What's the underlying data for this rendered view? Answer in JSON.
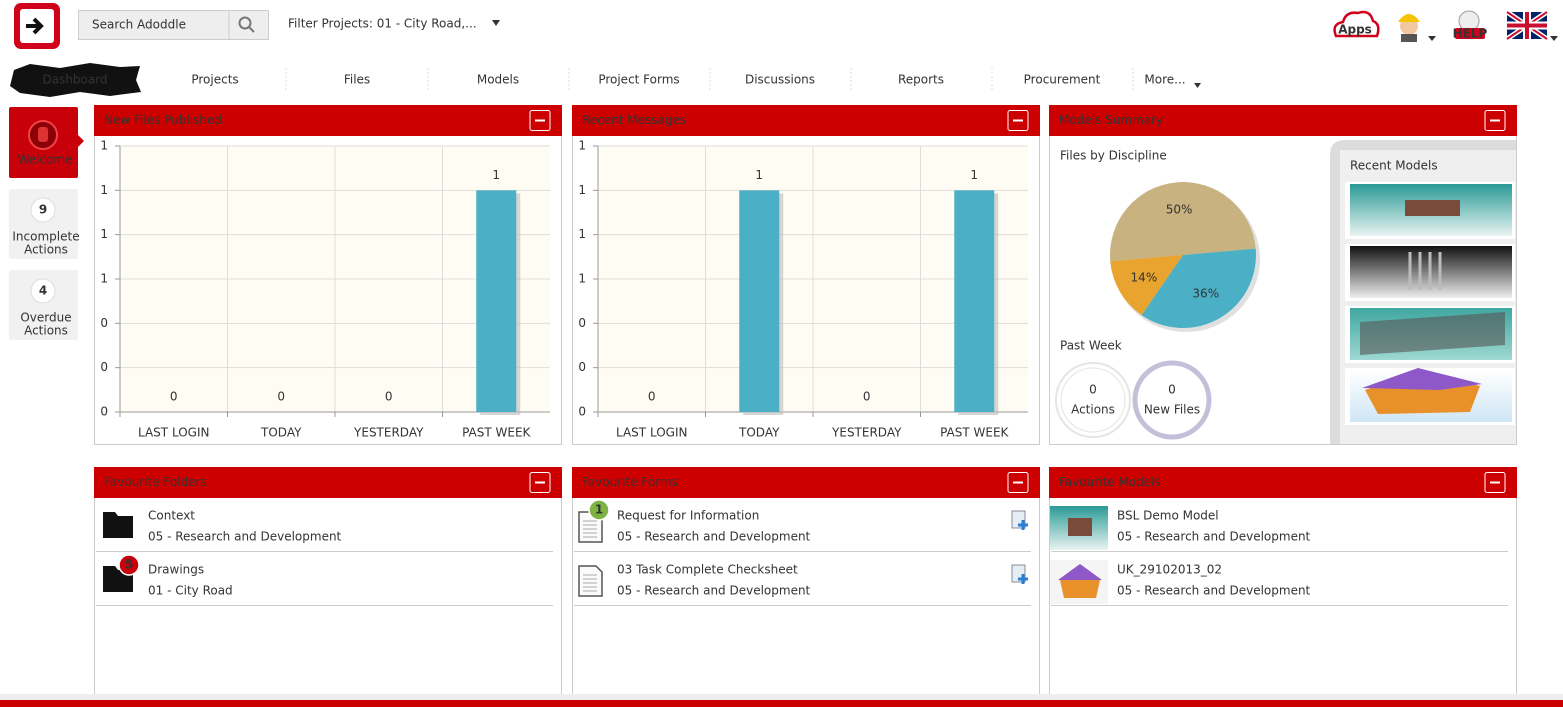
{
  "header": {
    "search": "Search Adoddle",
    "filter": "Filter Projects: 01 - City Road,...",
    "apps": "Apps",
    "help": "HELP"
  },
  "nav": [
    "Dashboard",
    "Projects",
    "Files",
    "Models",
    "Project Forms",
    "Discussions",
    "Reports",
    "Procurement",
    "More..."
  ],
  "sidebar": {
    "welcome": "Welcome",
    "incomplete": {
      "count": 9,
      "label": [
        "Incomplete",
        "Actions"
      ]
    },
    "overdue": {
      "count": 4,
      "label": [
        "Overdue",
        "Actions"
      ]
    }
  },
  "chart_data": [
    {
      "type": "bar",
      "title": "New Files Published",
      "categories": [
        "LAST LOGIN",
        "TODAY",
        "YESTERDAY",
        "PAST WEEK"
      ],
      "values": [
        0,
        0,
        0,
        1
      ],
      "color": "#4bb0c5",
      "ylim": [
        0,
        1.2
      ],
      "yticks": [
        0,
        {
          "value": 0.2,
          "label": "0"
        },
        {
          "value": 0.4,
          "label": "0"
        },
        {
          "value": 0.6,
          "label": "1"
        },
        {
          "value": 0.8,
          "label": "1"
        },
        1,
        {
          "value": 1.2,
          "label": "1"
        }
      ],
      "grid": true
    },
    {
      "type": "bar",
      "title": "Recent Messages",
      "categories": [
        "LAST LOGIN",
        "TODAY",
        "YESTERDAY",
        "PAST WEEK"
      ],
      "values": [
        0,
        1,
        0,
        1
      ],
      "color": "#4bb0c5",
      "ylim": [
        0,
        1.2
      ],
      "yticks": [
        0,
        {
          "value": 0.2,
          "label": "0"
        },
        {
          "value": 0.4,
          "label": "0"
        },
        {
          "value": 0.6,
          "label": "1"
        },
        {
          "value": 0.8,
          "label": "1"
        },
        1,
        {
          "value": 1.2,
          "label": "1"
        }
      ],
      "grid": true
    },
    {
      "type": "pie",
      "title": "Files by Discipline",
      "values": [
        50,
        36,
        14
      ],
      "value_labels": [
        "50%",
        "36%",
        "14%"
      ],
      "colors": [
        "#c8b27f",
        "#4bb0c5",
        "#e9a32f"
      ]
    }
  ],
  "models_summary": {
    "title": "Models Summary",
    "past_week": {
      "title": "Past Week",
      "items": [
        {
          "count": 0,
          "label": "Actions"
        },
        {
          "count": 0,
          "label": "New Files"
        }
      ]
    },
    "recent_models": {
      "title": "Recent Models"
    }
  },
  "favourite_folders": {
    "title": "Favourite Folders",
    "items": [
      {
        "name": "Context",
        "project": "05 - Research and Development"
      },
      {
        "name": "Drawings",
        "project": "01 - City Road",
        "badge": 5
      }
    ]
  },
  "favourite_forms": {
    "title": "Favourite Forms",
    "items": [
      {
        "name": "Request for Information",
        "project": "05 - Research and Development",
        "badge": 1
      },
      {
        "name": "03 Task Complete Checksheet",
        "project": "05 - Research and Development"
      }
    ]
  },
  "favourite_models": {
    "title": "Favourite Models",
    "items": [
      {
        "name": "BSL Demo Model",
        "project": "05 - Research and Development"
      },
      {
        "name": "UK_29102013_02",
        "project": "05 - Research and Development"
      }
    ]
  }
}
